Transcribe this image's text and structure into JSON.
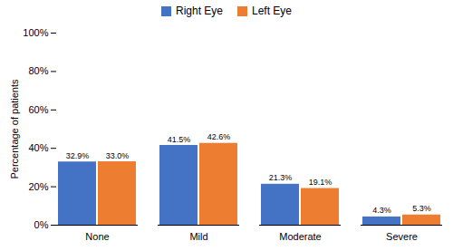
{
  "chart_data": {
    "type": "bar",
    "categories": [
      "None",
      "Mild",
      "Moderate",
      "Severe"
    ],
    "series": [
      {
        "name": "Right Eye",
        "color": "#4472C4",
        "values": [
          32.9,
          41.5,
          21.3,
          4.3
        ],
        "value_labels": [
          "32.9%",
          "41.5%",
          "21.3%",
          "4.3%"
        ]
      },
      {
        "name": "Left Eye",
        "color": "#ED7D31",
        "values": [
          33.0,
          42.6,
          19.1,
          5.3
        ],
        "value_labels": [
          "33.0%",
          "42.6%",
          "19.1%",
          "5.3%"
        ]
      }
    ],
    "ylabel": "Percentage of patients",
    "ylim": [
      0,
      100
    ],
    "yticks": [
      {
        "value": 0,
        "label": "0%"
      },
      {
        "value": 20,
        "label": "20%"
      },
      {
        "value": 40,
        "label": "40%"
      },
      {
        "value": 60,
        "label": "60%"
      },
      {
        "value": 80,
        "label": "80%"
      },
      {
        "value": 100,
        "label": "100%"
      }
    ],
    "data_labels": true,
    "legend": "top",
    "grid": false
  }
}
